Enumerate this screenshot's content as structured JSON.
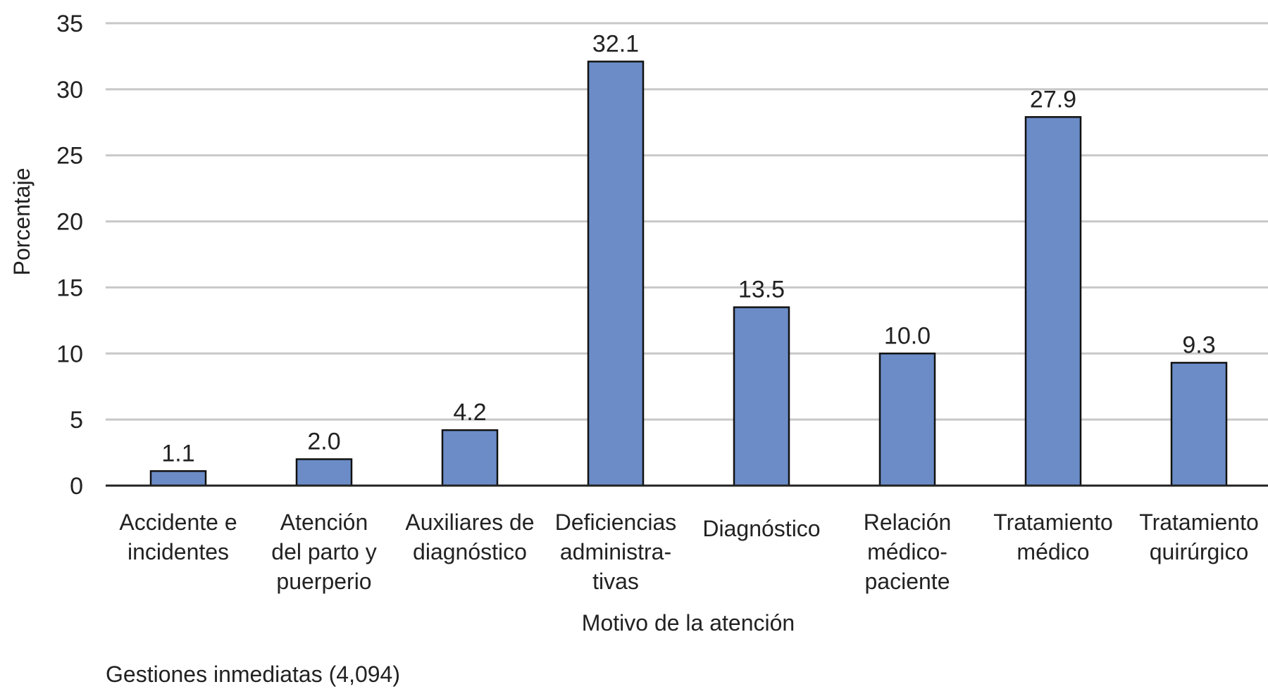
{
  "chart_data": {
    "type": "bar",
    "categories": [
      [
        "Accidente e",
        "incidentes"
      ],
      [
        "Atención",
        "del parto y",
        "puerperio"
      ],
      [
        "Auxiliares de",
        "diagnóstico"
      ],
      [
        "Deficiencias",
        "administra-",
        "tivas"
      ],
      [
        "Diagnóstico"
      ],
      [
        "Relación",
        "médico-",
        "paciente"
      ],
      [
        "Tratamiento",
        "médico"
      ],
      [
        "Tratamiento",
        "quirúrgico"
      ]
    ],
    "values": [
      1.1,
      2.0,
      4.2,
      32.1,
      13.5,
      10.0,
      27.9,
      9.3
    ],
    "value_labels": [
      "1.1",
      "2.0",
      "4.2",
      "32.1",
      "13.5",
      "10.0",
      "27.9",
      "9.3"
    ],
    "title": "",
    "xlabel": "Motivo de la atención",
    "ylabel": "Porcentaje",
    "ylim": [
      0,
      35
    ],
    "yticks": [
      0,
      5,
      10,
      15,
      20,
      25,
      30,
      35
    ],
    "grid": true,
    "legend": null
  },
  "colors": {
    "bar_fill": "#6b8cc7",
    "bar_stroke": "#111111",
    "grid": "#c8c8c8",
    "axis": "#222222"
  },
  "footnote": "Gestiones inmediatas (4,094)"
}
